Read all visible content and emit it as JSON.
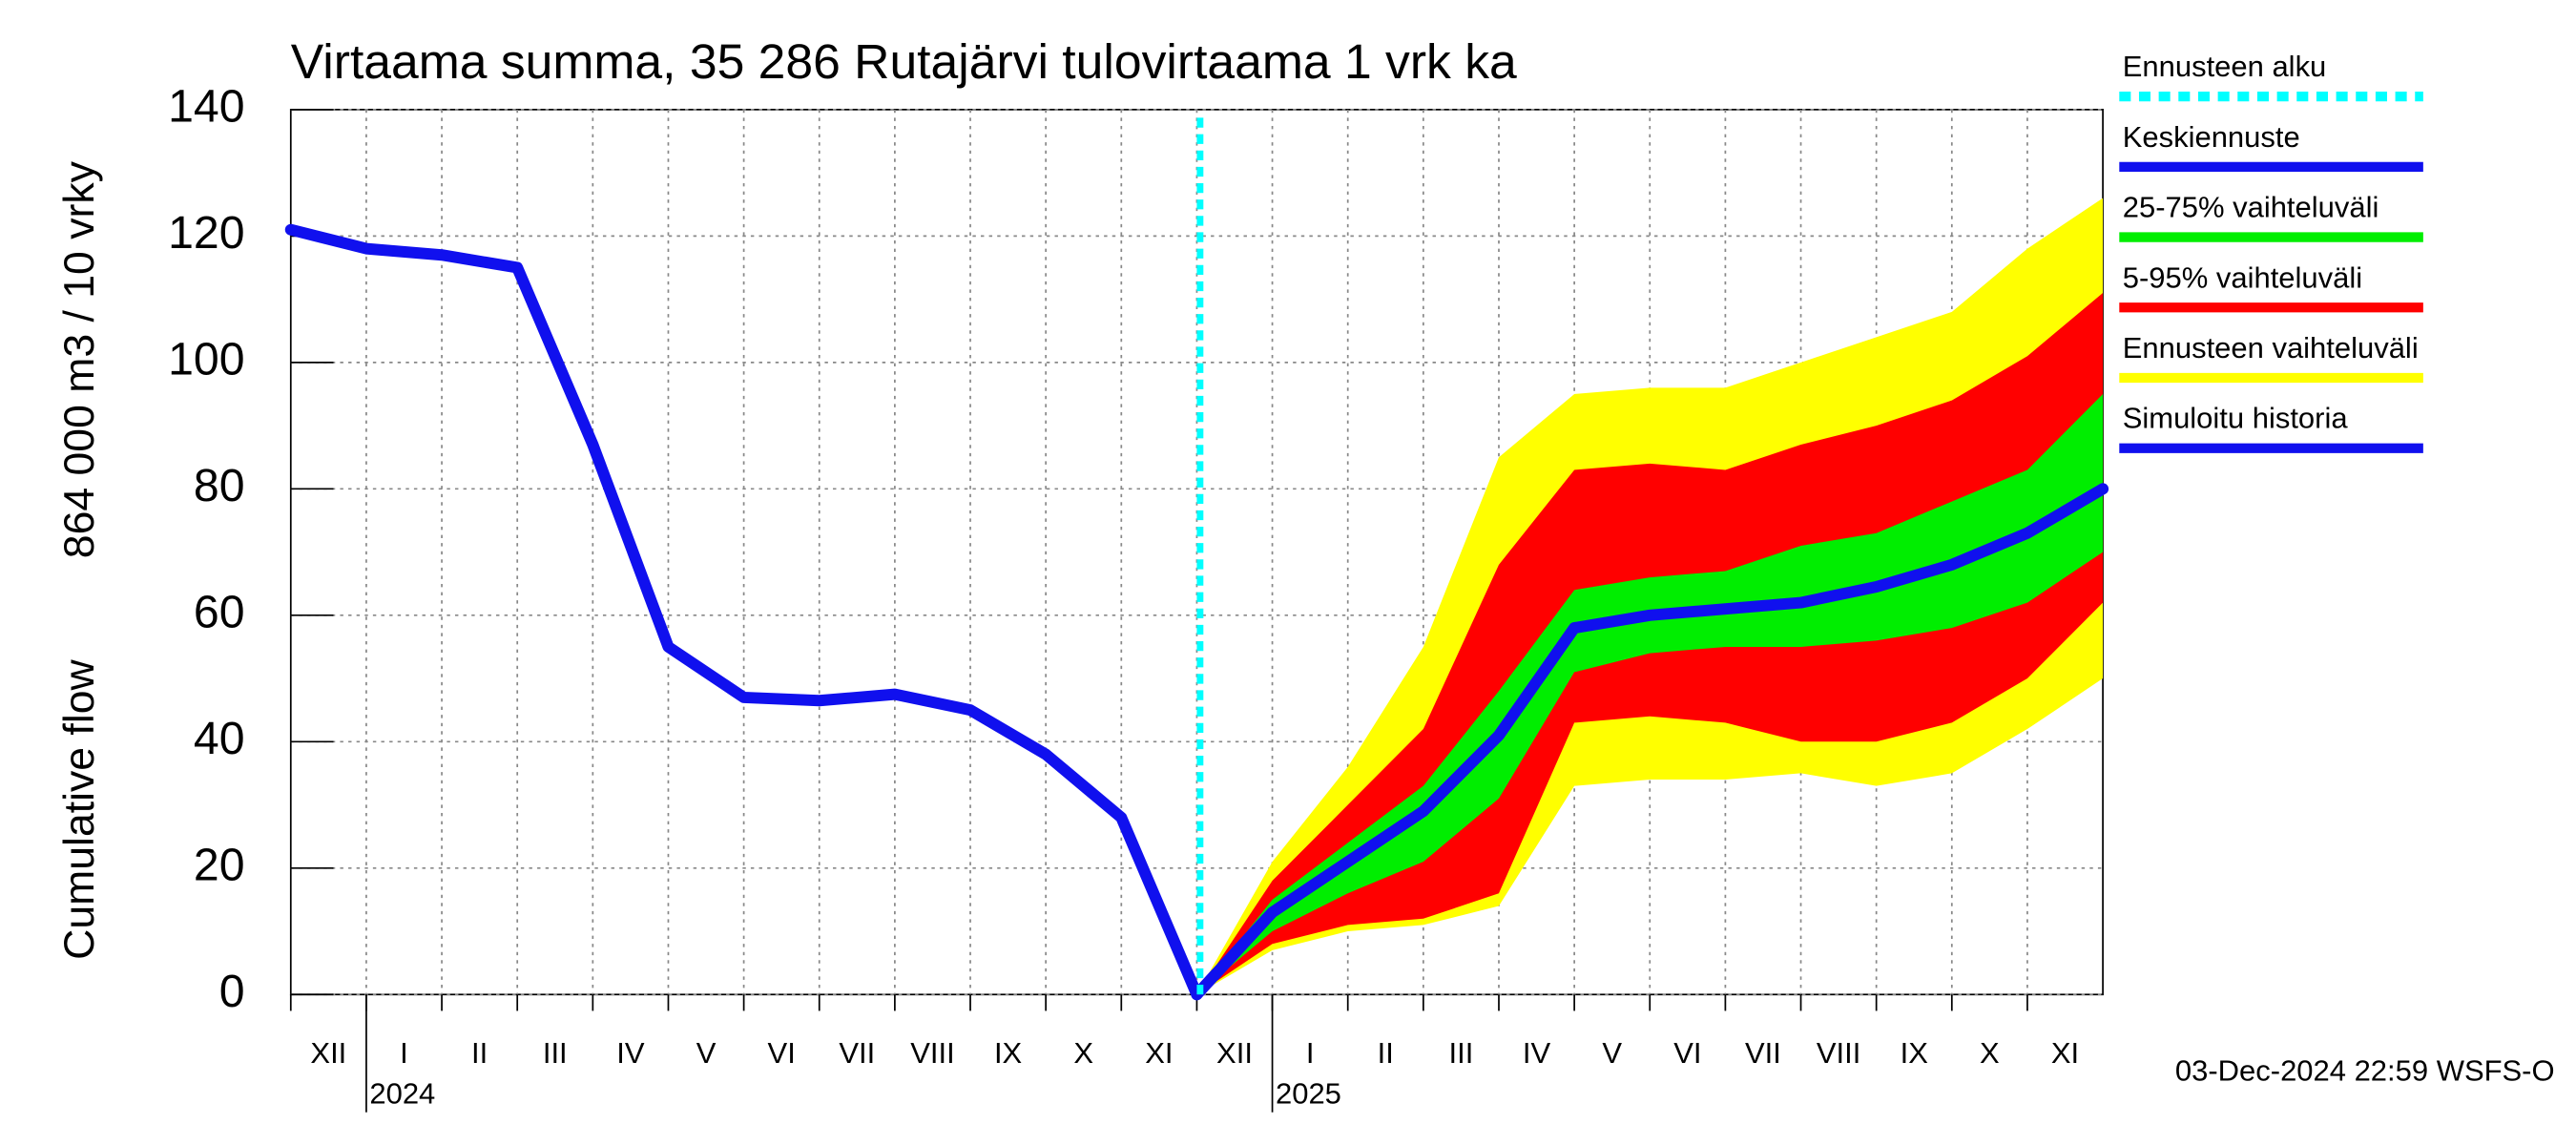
{
  "chart_data": {
    "type": "line",
    "title": "Virtaama summa, 35 286 Rutajärvi tulovirtaama 1 vrk ka",
    "y_label": [
      "Cumulative flow",
      "864 000 m3 / 10 vrky"
    ],
    "x": [
      "2023-12",
      "2024-01",
      "2024-02",
      "2024-03",
      "2024-04",
      "2024-05",
      "2024-06",
      "2024-07",
      "2024-08",
      "2024-09",
      "2024-10",
      "2024-11",
      "2024-12",
      "2025-01",
      "2025-02",
      "2025-03",
      "2025-04",
      "2025-05",
      "2025-06",
      "2025-07",
      "2025-08",
      "2025-09",
      "2025-10",
      "2025-11",
      "2025-12"
    ],
    "month_labels": [
      "XII",
      "I",
      "II",
      "III",
      "IV",
      "V",
      "VI",
      "VII",
      "VIII",
      "IX",
      "X",
      "XI",
      "XII",
      "I",
      "II",
      "III",
      "IV",
      "V",
      "VI",
      "VII",
      "VIII",
      "IX",
      "X",
      "XI"
    ],
    "year_labels": [
      "2024",
      "2025"
    ],
    "ylim": [
      0,
      140
    ],
    "yticks": [
      0,
      20,
      40,
      60,
      80,
      100,
      120,
      140
    ],
    "grid": true,
    "forecast_start": {
      "name": "Ennusteen alku",
      "color": "#00ffff",
      "x": "2024-12"
    },
    "series": [
      {
        "name": "Keskiennuste",
        "kind": "line",
        "color": "#1010ee",
        "values": [
          null,
          null,
          null,
          null,
          null,
          null,
          null,
          null,
          null,
          null,
          null,
          null,
          0,
          13,
          21,
          29,
          41,
          58,
          60,
          61,
          62,
          64.5,
          68,
          73,
          80
        ]
      },
      {
        "name": "25-75% vaihteluväli",
        "kind": "band",
        "color": "#00ee00",
        "values": [
          null,
          null,
          null,
          null,
          null,
          null,
          null,
          null,
          null,
          null,
          null,
          null,
          0,
          10,
          16,
          21,
          31,
          51,
          54,
          55,
          55,
          56,
          58,
          62,
          70
        ],
        "upper": [
          null,
          null,
          null,
          null,
          null,
          null,
          null,
          null,
          null,
          null,
          null,
          null,
          0,
          15,
          24,
          33,
          48,
          64,
          66,
          67,
          71,
          73,
          78,
          83,
          95
        ]
      },
      {
        "name": "5-95% vaihteluväli",
        "kind": "band",
        "color": "#ff0000",
        "values": [
          null,
          null,
          null,
          null,
          null,
          null,
          null,
          null,
          null,
          null,
          null,
          null,
          0,
          8,
          11,
          12,
          16,
          43,
          44,
          43,
          40,
          40,
          43,
          50,
          62
        ],
        "upper": [
          null,
          null,
          null,
          null,
          null,
          null,
          null,
          null,
          null,
          null,
          null,
          null,
          0,
          18,
          30,
          42,
          68,
          83,
          84,
          83,
          87,
          90,
          94,
          101,
          111
        ]
      },
      {
        "name": "Ennusteen vaihteluväli",
        "kind": "band",
        "color": "#ffff00",
        "values": [
          null,
          null,
          null,
          null,
          null,
          null,
          null,
          null,
          null,
          null,
          null,
          null,
          0,
          7,
          10,
          11,
          14,
          33,
          34,
          34,
          35,
          33,
          35,
          42,
          50
        ],
        "upper": [
          null,
          null,
          null,
          null,
          null,
          null,
          null,
          null,
          null,
          null,
          null,
          null,
          0,
          21,
          36,
          55,
          85,
          95,
          96,
          96,
          100,
          104,
          108,
          118,
          126
        ]
      },
      {
        "name": "Simuloitu historia",
        "kind": "line",
        "color": "#1010ee",
        "values": [
          121,
          118,
          117,
          115,
          87,
          55,
          47,
          46.5,
          47.5,
          45,
          38,
          28,
          0,
          null,
          null,
          null,
          null,
          null,
          null,
          null,
          null,
          null,
          null,
          null,
          null
        ]
      }
    ],
    "footer": "03-Dec-2024 22:59 WSFS-O"
  }
}
